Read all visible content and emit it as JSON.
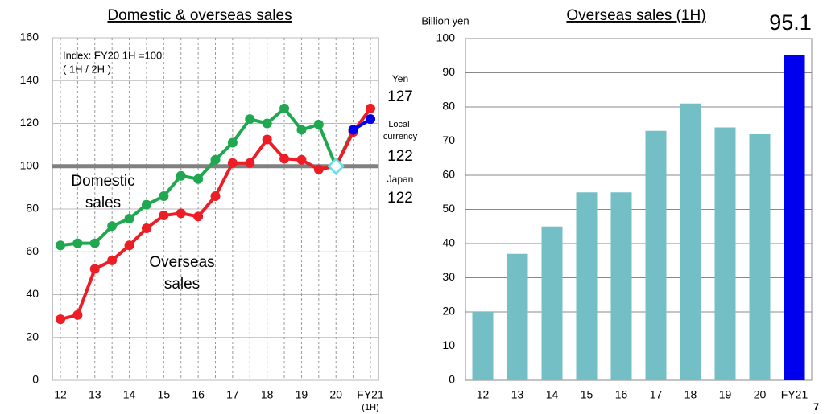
{
  "page_number": "7",
  "chart_data": [
    {
      "type": "line",
      "title": "Domestic & overseas sales",
      "notes": [
        "Index: FY20 1H =100",
        "( 1H / 2H )"
      ],
      "categories": [
        "12",
        null,
        "13",
        null,
        "14",
        null,
        "15",
        null,
        "16",
        null,
        "17",
        null,
        "18",
        null,
        "19",
        null,
        "20",
        null,
        "FY21"
      ],
      "category_note": "(1H)",
      "series": [
        {
          "name": "Japan",
          "color": "#1fa84f",
          "values": [
            63,
            64,
            64,
            72,
            75.5,
            82,
            86,
            95.5,
            94,
            103,
            111,
            122,
            120,
            127,
            117,
            119.5,
            100,
            117,
            122
          ]
        },
        {
          "name": "Yen",
          "color": "#ee1c25",
          "values": [
            28.5,
            30.5,
            52,
            56,
            63,
            71,
            77,
            78,
            76.5,
            86,
            101.5,
            101.5,
            112.5,
            103.5,
            103,
            98.5,
            100,
            116,
            127
          ]
        },
        {
          "name": "Local currency",
          "color": "#0000ee",
          "values": [
            null,
            null,
            null,
            null,
            null,
            null,
            null,
            null,
            null,
            null,
            null,
            null,
            null,
            null,
            null,
            null,
            null,
            117,
            122
          ]
        }
      ],
      "labels": [
        {
          "lines": [
            "Domestic",
            "sales"
          ],
          "color": "#1fa84f"
        },
        {
          "lines": [
            "Overseas",
            "sales"
          ],
          "color": "#ee1c25"
        }
      ],
      "hline": {
        "value": 100,
        "color": "#808080"
      },
      "ylim": [
        0,
        160
      ],
      "yticks": [
        0,
        20,
        40,
        60,
        80,
        100,
        120,
        140,
        160
      ],
      "grid": true
    },
    {
      "type": "bar",
      "title": "Overseas sales (1H)",
      "ylabel": "Billion yen",
      "categories": [
        "12",
        "13",
        "14",
        "15",
        "16",
        "17",
        "18",
        "19",
        "20",
        "FY21"
      ],
      "values": [
        20,
        37,
        45,
        55,
        55,
        73,
        81,
        74,
        72,
        95.1
      ],
      "value_labels": [
        null,
        null,
        null,
        null,
        null,
        null,
        null,
        null,
        null,
        "95.1"
      ],
      "value_label_color": "#ee1c25",
      "colors": [
        "#74bfc6",
        "#74bfc6",
        "#74bfc6",
        "#74bfc6",
        "#74bfc6",
        "#74bfc6",
        "#74bfc6",
        "#74bfc6",
        "#74bfc6",
        "#0000ee"
      ],
      "ylim": [
        0,
        100
      ],
      "yticks": [
        0,
        10,
        20,
        30,
        40,
        50,
        60,
        70,
        80,
        90,
        100
      ],
      "grid": true
    }
  ]
}
